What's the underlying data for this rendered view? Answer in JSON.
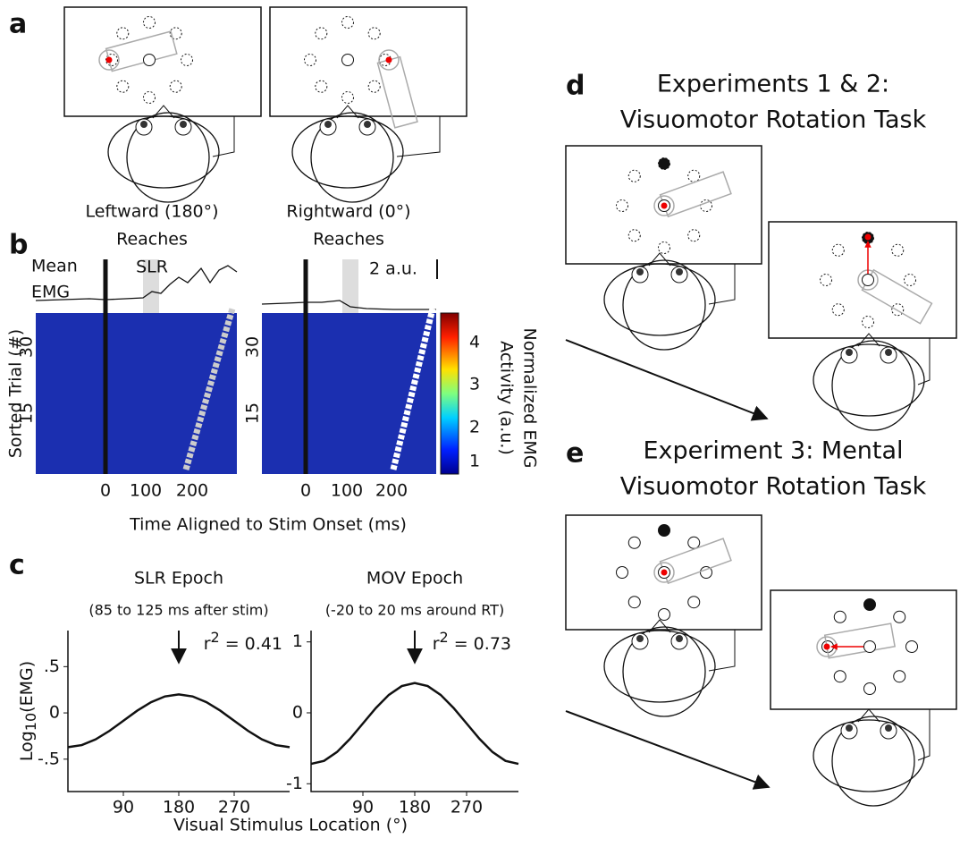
{
  "panel_a": {
    "label": "a",
    "left_caption": [
      "Leftward (180°)",
      "Reaches"
    ],
    "right_caption": [
      "Rightward (0°)",
      "Reaches"
    ]
  },
  "panel_b": {
    "label": "b",
    "mean_emg": [
      "Mean",
      "EMG"
    ],
    "epoch_label": "SLR",
    "scale_bar": "2 a.u.",
    "y_label": "Sorted Trial (#)",
    "y_ticks": [
      "30",
      "15"
    ],
    "x_ticks": [
      "0",
      "100",
      "200"
    ],
    "x_label": "Time Aligned to Stim Onset (ms)",
    "colorbar_ticks": [
      "4",
      "3",
      "2",
      "1"
    ],
    "colorbar_label": [
      "Normalized EMG",
      "Activity (a.u.)"
    ]
  },
  "panel_c": {
    "label": "c",
    "y_label": {
      "base": "Log",
      "sub": "10",
      "rest": "(EMG)"
    },
    "x_label": "Visual Stimulus Location (°)"
  },
  "chart_data": [
    {
      "type": "line",
      "title": "SLR Epoch",
      "subtitle": "(85 to 125 ms after stim)",
      "annotation": {
        "base": "r",
        "sup": "2",
        "rest": " = 0.41"
      },
      "color": "#111111",
      "x": [
        0,
        22.5,
        45,
        67.5,
        90,
        112.5,
        135,
        157.5,
        180,
        202.5,
        225,
        247.5,
        270,
        292.5,
        315,
        337.5,
        360
      ],
      "values": [
        -0.37,
        -0.348,
        -0.286,
        -0.194,
        -0.085,
        0.024,
        0.116,
        0.178,
        0.2,
        0.178,
        0.116,
        0.024,
        -0.085,
        -0.194,
        -0.286,
        -0.348,
        -0.37
      ],
      "xlim": [
        0,
        360
      ],
      "xticks": [
        90,
        180,
        270
      ],
      "ylim": [
        -0.85,
        0.89
      ],
      "yticks": [
        {
          "value": 0.5,
          "label": ".5"
        },
        0,
        {
          "value": -0.5,
          "label": "-.5"
        }
      ]
    },
    {
      "type": "line",
      "title": "MOV Epoch",
      "subtitle": "(-20 to 20 ms around RT)",
      "annotation": {
        "base": "r",
        "sup": "2",
        "rest": " = 0.73"
      },
      "color": "#111111",
      "x": [
        0,
        22.5,
        45,
        67.5,
        90,
        112.5,
        135,
        157.5,
        180,
        202.5,
        225,
        247.5,
        270,
        292.5,
        315,
        337.5,
        360
      ],
      "values": [
        -0.72,
        -0.677,
        -0.553,
        -0.368,
        -0.15,
        0.068,
        0.253,
        0.377,
        0.42,
        0.377,
        0.253,
        0.068,
        -0.15,
        -0.368,
        -0.553,
        -0.677,
        -0.72
      ],
      "xlim": [
        0,
        360
      ],
      "xticks": [
        90,
        180,
        270
      ],
      "ylim": [
        -1.11,
        1.16
      ],
      "yticks": [
        1,
        0,
        -1
      ]
    }
  ],
  "panel_d": {
    "label": "d",
    "title": [
      "Experiments 1 & 2:",
      "Visuomotor Rotation Task"
    ]
  },
  "panel_e": {
    "label": "e",
    "title": [
      "Experiment 3: Mental",
      "Visuomotor Rotation Task"
    ]
  }
}
